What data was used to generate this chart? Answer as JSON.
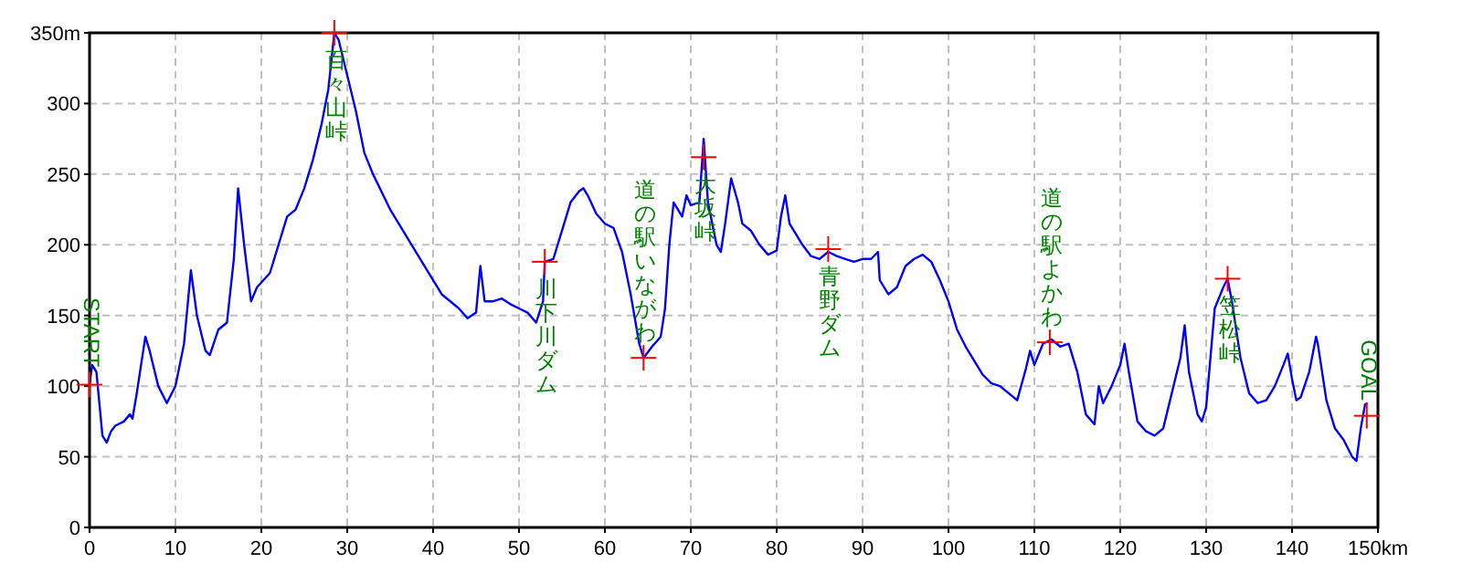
{
  "chart_data": {
    "type": "line",
    "xlim": [
      0,
      150
    ],
    "ylim": [
      0,
      350
    ],
    "xticks": [
      0,
      10,
      20,
      30,
      40,
      50,
      60,
      70,
      80,
      90,
      100,
      110,
      120,
      130,
      140,
      {
        "value": 150,
        "label": "150km"
      }
    ],
    "yticks": [
      0,
      50,
      100,
      150,
      200,
      250,
      300,
      {
        "value": 350,
        "label": "350m"
      }
    ],
    "grid": true,
    "marker": "none",
    "line_style": "solid",
    "series": [
      {
        "color": "#0000ff",
        "x": [
          0,
          0.3,
          0.8,
          1.5,
          2,
          2.5,
          3,
          4,
          4.7,
          5,
          5.5,
          6.5,
          7,
          8,
          9,
          10,
          11,
          11.8,
          12.5,
          13.5,
          14,
          15,
          16,
          16.8,
          17.3,
          18,
          18.8,
          19.5,
          21,
          22,
          23,
          24,
          25,
          26,
          27,
          27.8,
          28.5,
          29,
          30,
          31,
          32,
          33,
          35,
          37,
          39,
          41,
          43,
          44,
          45,
          45.5,
          46,
          47,
          48,
          49,
          50,
          51,
          52,
          52.8,
          53,
          54,
          55,
          56,
          57,
          57.5,
          58,
          59,
          60,
          61,
          62,
          63,
          64,
          64.5,
          65.5,
          66.5,
          67,
          67.5,
          68,
          68.5,
          69,
          69.5,
          70,
          71,
          71.5,
          72,
          72.5,
          73,
          73.5,
          74,
          74.7,
          75.5,
          76,
          77,
          78,
          79,
          80,
          80.5,
          81,
          81.5,
          82,
          83,
          84,
          85,
          86,
          87,
          88,
          89,
          90,
          91,
          91.8,
          92,
          93,
          94,
          95,
          96,
          97,
          98,
          99,
          100,
          101,
          102,
          103,
          104,
          105,
          106,
          107,
          108,
          109,
          109.5,
          110,
          111,
          112,
          113,
          114,
          115,
          116,
          117,
          117.5,
          118,
          119,
          120,
          120.5,
          121,
          122,
          123,
          124,
          125,
          126,
          127,
          127.5,
          128,
          129,
          129.5,
          130,
          131,
          132,
          132.5,
          133,
          134,
          135,
          136,
          137,
          138,
          139,
          139.5,
          140,
          140.5,
          141,
          142,
          142.8,
          143,
          144,
          145,
          146,
          147,
          147.5,
          148,
          148.5,
          148.8
        ],
        "values": [
          101,
          115,
          110,
          65,
          60,
          68,
          72,
          75,
          80,
          77,
          95,
          135,
          125,
          100,
          88,
          100,
          130,
          182,
          150,
          125,
          122,
          140,
          145,
          190,
          240,
          200,
          160,
          170,
          180,
          200,
          220,
          225,
          240,
          260,
          285,
          310,
          350,
          345,
          320,
          295,
          265,
          250,
          225,
          205,
          185,
          165,
          155,
          148,
          152,
          185,
          160,
          160,
          162,
          158,
          155,
          152,
          145,
          160,
          188,
          190,
          210,
          230,
          238,
          240,
          235,
          222,
          215,
          212,
          195,
          165,
          130,
          120,
          128,
          135,
          155,
          200,
          230,
          225,
          220,
          235,
          228,
          230,
          275,
          230,
          215,
          200,
          195,
          215,
          247,
          230,
          215,
          210,
          200,
          193,
          196,
          220,
          235,
          215,
          210,
          200,
          192,
          190,
          195,
          192,
          190,
          188,
          190,
          190,
          195,
          175,
          165,
          170,
          185,
          190,
          193,
          188,
          175,
          160,
          140,
          128,
          118,
          108,
          102,
          100,
          95,
          90,
          112,
          125,
          115,
          130,
          133,
          128,
          130,
          110,
          80,
          73,
          100,
          88,
          100,
          115,
          130,
          110,
          75,
          68,
          65,
          70,
          95,
          120,
          143,
          110,
          80,
          75,
          85,
          155,
          170,
          176,
          160,
          120,
          95,
          88,
          90,
          100,
          115,
          123,
          105,
          90,
          92,
          110,
          135,
          130,
          90,
          70,
          62,
          50,
          47,
          70,
          87,
          88
        ]
      }
    ],
    "annotations": [
      {
        "text": "START",
        "x": 0,
        "y": 101
      },
      {
        "text": "百々山峠",
        "x": 28.5,
        "y": 350
      },
      {
        "text": "川下川ダム",
        "x": 53,
        "y": 188
      },
      {
        "text": "道の駅いながわ",
        "x": 64.5,
        "y": 120
      },
      {
        "text": "大坂峠",
        "x": 71.5,
        "y": 262
      },
      {
        "text": "青野ダム",
        "x": 86,
        "y": 197
      },
      {
        "text": "道の駅よかわ",
        "x": 111.8,
        "y": 131
      },
      {
        "text": "笠松峠",
        "x": 132.5,
        "y": 176
      },
      {
        "text": "GOAL",
        "x": 148.7,
        "y": 79
      }
    ]
  }
}
